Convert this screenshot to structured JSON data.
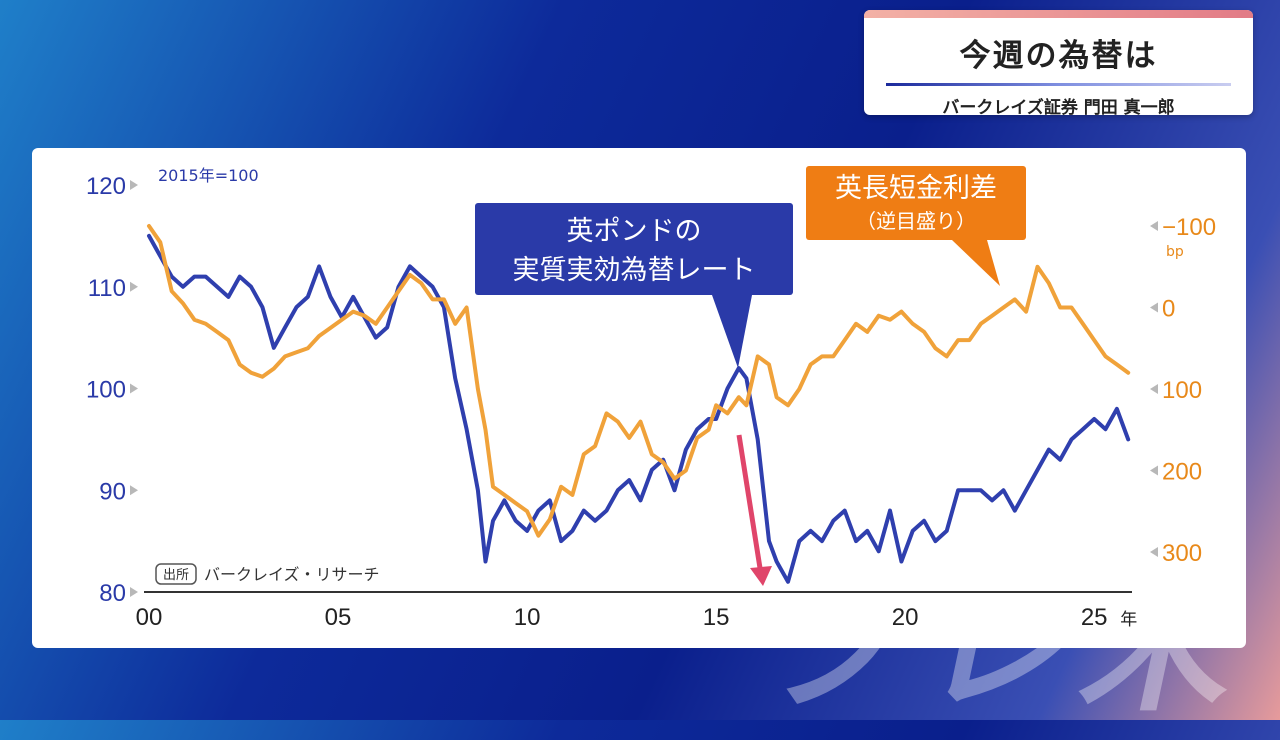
{
  "header": {
    "title": "今週の為替は",
    "subtitle": "バークレイズ証券 門田 真一郎"
  },
  "background_text": "ブレ米",
  "chart_data": {
    "type": "line",
    "base_note": "2015年=100",
    "source_badge": "出所",
    "source_text": "バークレイズ・リサーチ",
    "x_range": [
      2000,
      2026
    ],
    "x_ticks": [
      {
        "value": 2000,
        "label": "00"
      },
      {
        "value": 2005,
        "label": "05"
      },
      {
        "value": 2010,
        "label": "10"
      },
      {
        "value": 2015,
        "label": "15"
      },
      {
        "value": 2020,
        "label": "20"
      },
      {
        "value": 2025,
        "label": "25"
      }
    ],
    "x_unit": "年",
    "left_axis": {
      "range": [
        80,
        120
      ],
      "ticks": [
        80,
        90,
        100,
        110,
        120
      ],
      "color": "#2a3aa8"
    },
    "right_axis": {
      "range": [
        -150,
        400
      ],
      "inverted": true,
      "ticks": [
        {
          "value": -100,
          "label": "−100"
        },
        {
          "value": 0,
          "label": "0"
        },
        {
          "value": 100,
          "label": "100"
        },
        {
          "value": 200,
          "label": "200"
        },
        {
          "value": 300,
          "label": "300"
        }
      ],
      "unit": "bp",
      "color": "#e8891a"
    },
    "series": [
      {
        "name": "英ポンドの実質実効為替レート",
        "axis": "left",
        "color": "#2f3fae",
        "x": [
          2000.0,
          2000.3,
          2000.6,
          2000.9,
          2001.2,
          2001.5,
          2001.8,
          2002.1,
          2002.4,
          2002.7,
          2003.0,
          2003.3,
          2003.6,
          2003.9,
          2004.2,
          2004.5,
          2004.8,
          2005.1,
          2005.4,
          2005.7,
          2006.0,
          2006.3,
          2006.6,
          2006.9,
          2007.2,
          2007.5,
          2007.8,
          2008.1,
          2008.4,
          2008.7,
          2008.9,
          2009.1,
          2009.4,
          2009.7,
          2010.0,
          2010.3,
          2010.6,
          2010.9,
          2011.2,
          2011.5,
          2011.8,
          2012.1,
          2012.4,
          2012.7,
          2013.0,
          2013.3,
          2013.6,
          2013.9,
          2014.2,
          2014.5,
          2014.8,
          2015.0,
          2015.3,
          2015.6,
          2015.8,
          2016.1,
          2016.4,
          2016.6,
          2016.9,
          2017.2,
          2017.5,
          2017.8,
          2018.1,
          2018.4,
          2018.7,
          2019.0,
          2019.3,
          2019.6,
          2019.9,
          2020.2,
          2020.5,
          2020.8,
          2021.1,
          2021.4,
          2021.7,
          2022.0,
          2022.3,
          2022.6,
          2022.9,
          2023.2,
          2023.5,
          2023.8,
          2024.1,
          2024.4,
          2024.7,
          2025.0,
          2025.3,
          2025.6,
          2025.9
        ],
        "values": [
          115,
          113,
          111,
          110,
          111,
          111,
          110,
          109,
          111,
          110,
          108,
          104,
          106,
          108,
          109,
          112,
          109,
          107,
          109,
          107,
          105,
          106,
          110,
          112,
          111,
          110,
          108,
          101,
          96,
          90,
          83,
          87,
          89,
          87,
          86,
          88,
          89,
          85,
          86,
          88,
          87,
          88,
          90,
          91,
          89,
          92,
          93,
          90,
          94,
          96,
          97,
          97,
          100,
          102,
          101,
          95,
          85,
          83,
          81,
          85,
          86,
          85,
          87,
          88,
          85,
          86,
          84,
          88,
          83,
          86,
          87,
          85,
          86,
          90,
          90,
          90,
          89,
          90,
          88,
          90,
          92,
          94,
          93,
          95,
          96,
          97,
          96,
          98,
          95
        ]
      },
      {
        "name": "英長短金利差（逆目盛り）",
        "axis": "right",
        "color": "#f0a23a",
        "x": [
          2000.0,
          2000.3,
          2000.6,
          2000.9,
          2001.2,
          2001.5,
          2001.8,
          2002.1,
          2002.4,
          2002.7,
          2003.0,
          2003.3,
          2003.6,
          2003.9,
          2004.2,
          2004.5,
          2004.8,
          2005.1,
          2005.4,
          2005.7,
          2006.0,
          2006.3,
          2006.6,
          2006.9,
          2007.2,
          2007.5,
          2007.8,
          2008.1,
          2008.4,
          2008.7,
          2008.9,
          2009.1,
          2009.4,
          2009.7,
          2010.0,
          2010.3,
          2010.6,
          2010.9,
          2011.2,
          2011.5,
          2011.8,
          2012.1,
          2012.4,
          2012.7,
          2013.0,
          2013.3,
          2013.6,
          2013.9,
          2014.2,
          2014.5,
          2014.8,
          2015.0,
          2015.3,
          2015.6,
          2015.8,
          2016.1,
          2016.4,
          2016.6,
          2016.9,
          2017.2,
          2017.5,
          2017.8,
          2018.1,
          2018.4,
          2018.7,
          2019.0,
          2019.3,
          2019.6,
          2019.9,
          2020.2,
          2020.5,
          2020.8,
          2021.1,
          2021.4,
          2021.7,
          2022.0,
          2022.3,
          2022.6,
          2022.9,
          2023.2,
          2023.5,
          2023.8,
          2024.1,
          2024.4,
          2024.7,
          2025.0,
          2025.3,
          2025.6,
          2025.9
        ],
        "values": [
          -100,
          -80,
          -20,
          -5,
          15,
          20,
          30,
          40,
          70,
          80,
          85,
          75,
          60,
          55,
          50,
          35,
          25,
          15,
          5,
          10,
          20,
          0,
          -20,
          -40,
          -30,
          -10,
          -10,
          20,
          0,
          100,
          150,
          220,
          230,
          240,
          250,
          280,
          260,
          220,
          230,
          180,
          170,
          130,
          140,
          160,
          140,
          180,
          190,
          210,
          200,
          160,
          150,
          120,
          130,
          110,
          120,
          60,
          70,
          110,
          120,
          100,
          70,
          60,
          60,
          40,
          20,
          30,
          10,
          15,
          5,
          20,
          30,
          50,
          60,
          40,
          40,
          20,
          10,
          0,
          -10,
          5,
          -50,
          -30,
          0,
          0,
          20,
          40,
          60,
          70,
          80
        ]
      }
    ],
    "annotations": {
      "gbp_line1": "英ポンドの",
      "gbp_line2": "実質実効為替レート",
      "spread_line1": "英長短金利差",
      "spread_line2": "（逆目盛り）",
      "gbp_color": "#2a3aa8",
      "spread_color": "#ef7d14",
      "arrow_color": "#e0456a"
    }
  }
}
